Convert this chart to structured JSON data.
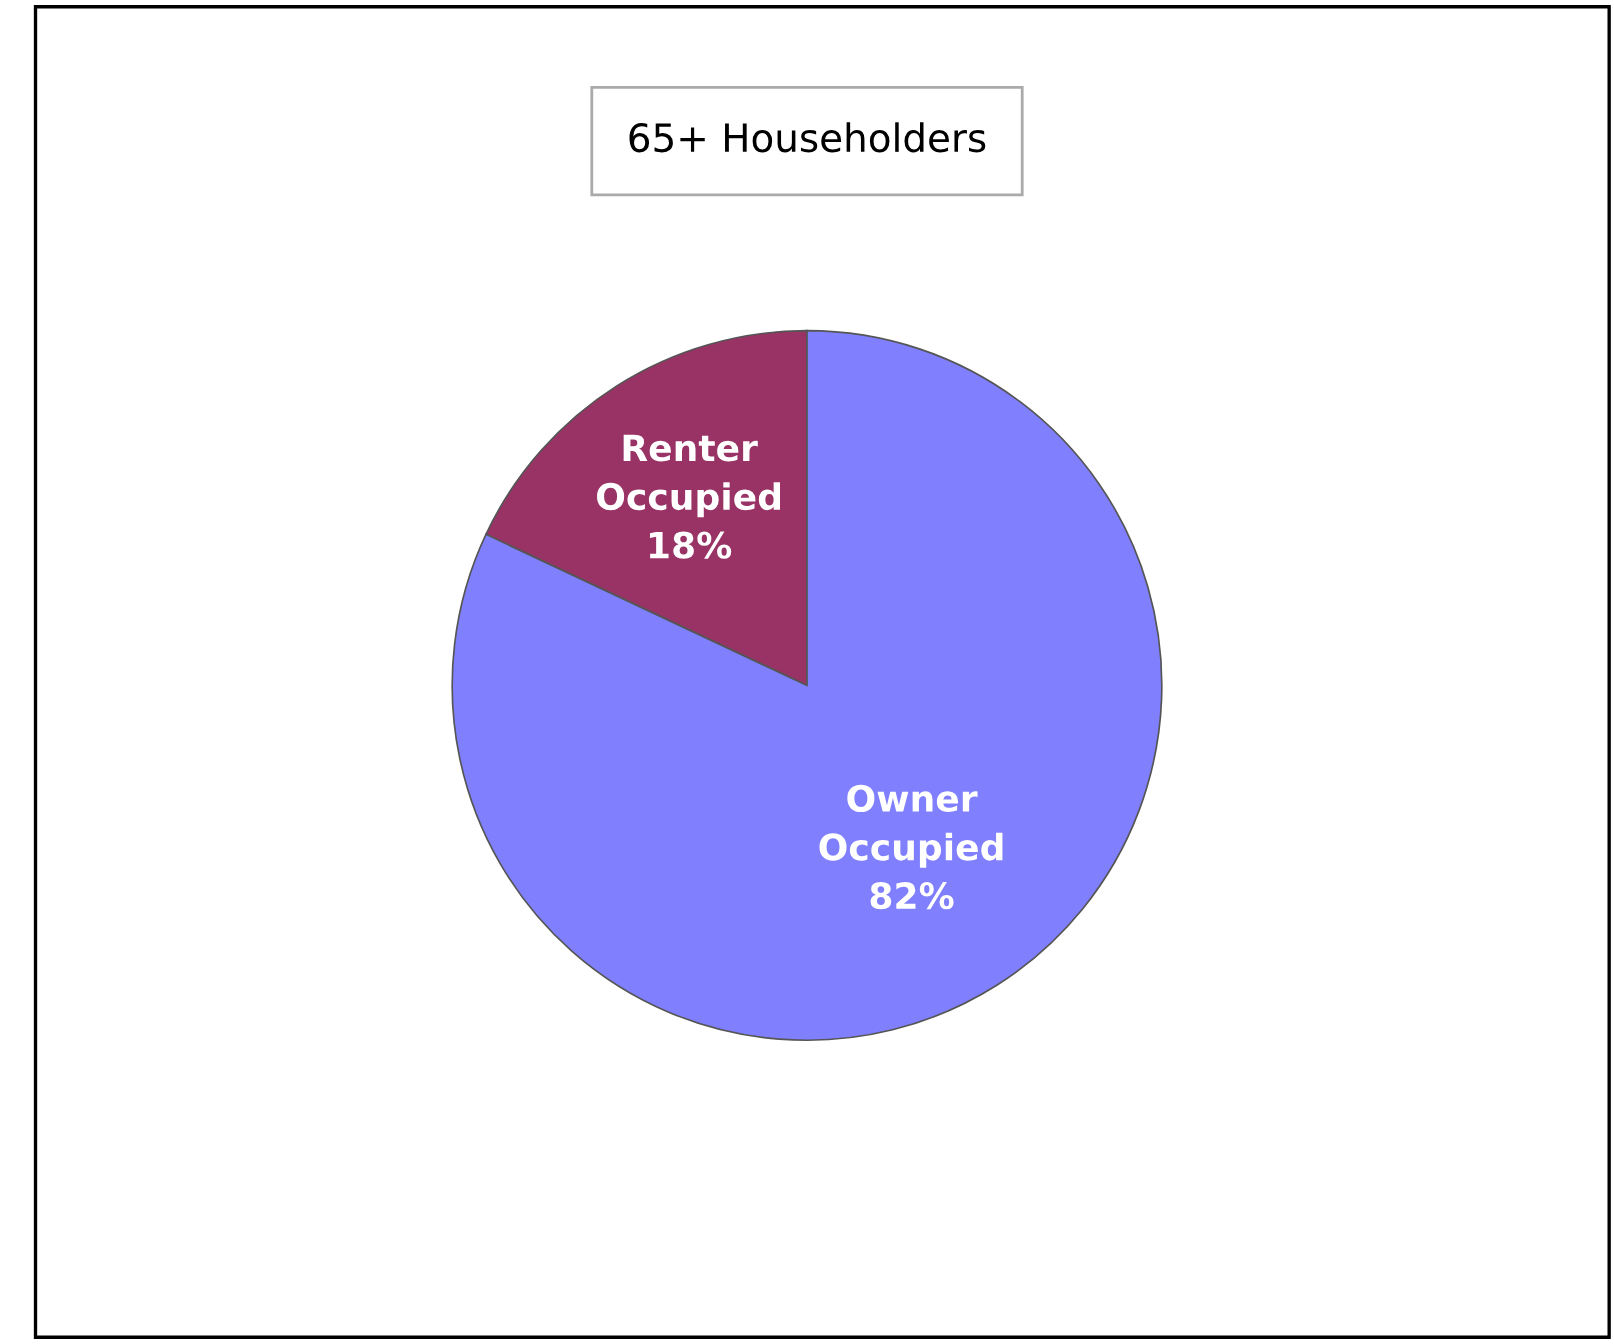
{
  "chart_data": {
    "type": "pie",
    "title": "65+ Householders",
    "categories": [
      "Renter Occupied",
      "Owner Occupied"
    ],
    "values": [
      18,
      82
    ],
    "value_labels": [
      "18%",
      "82%"
    ],
    "colors": [
      "#993366",
      "#8080ff"
    ],
    "legend": false
  }
}
